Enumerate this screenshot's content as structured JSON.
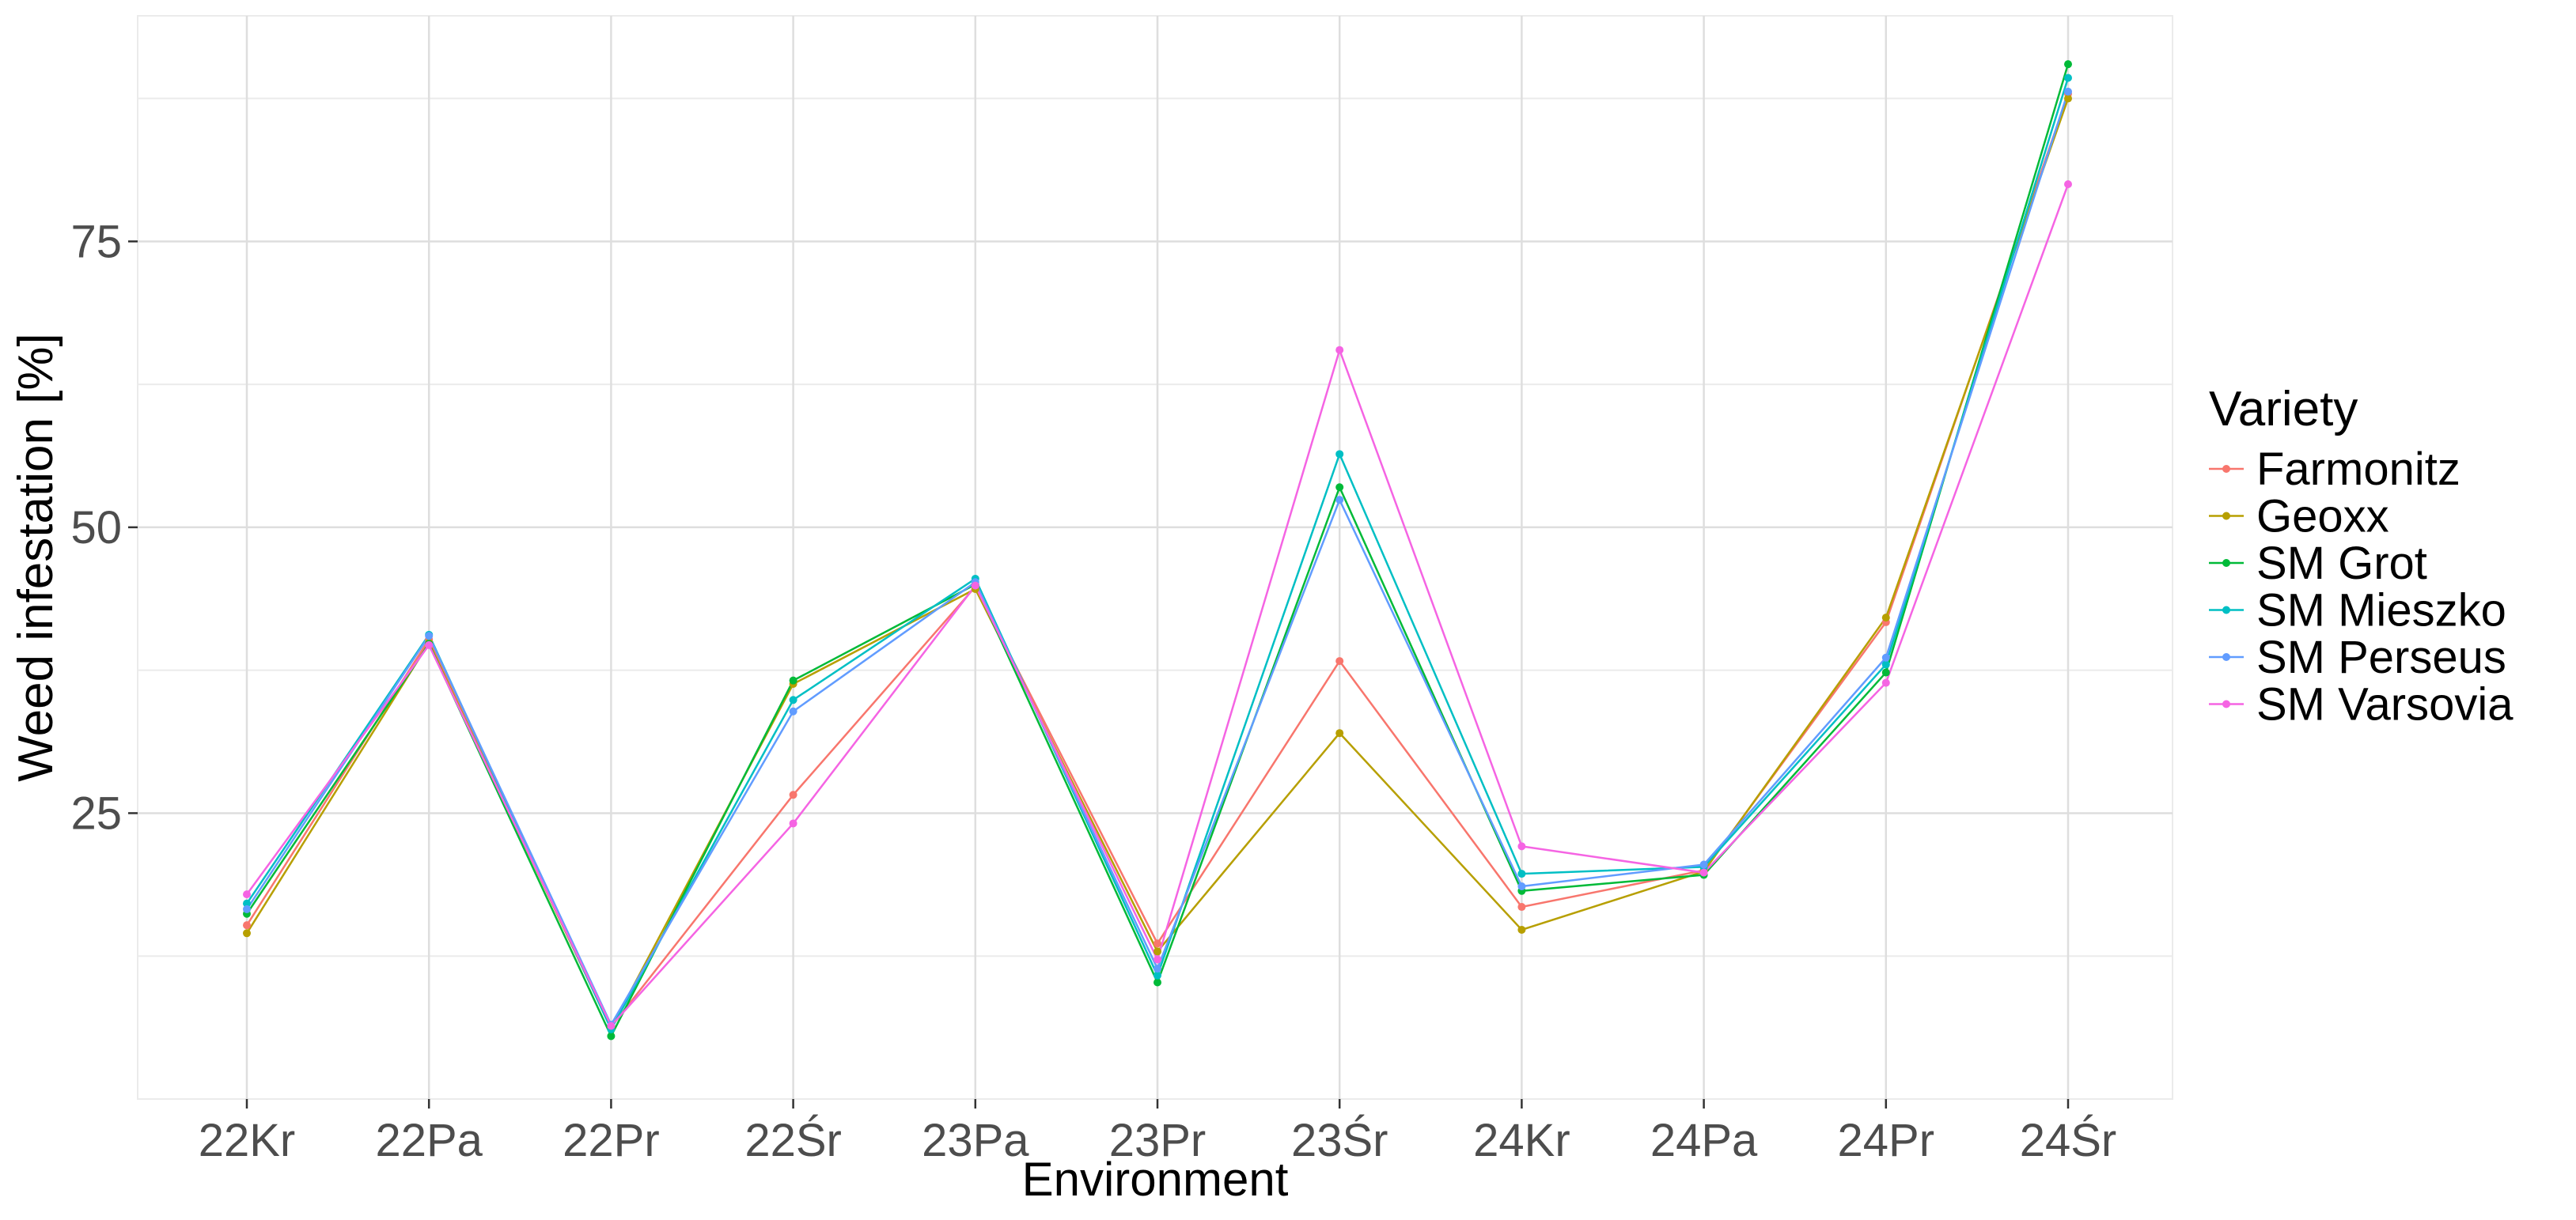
{
  "chart_data": {
    "type": "line",
    "xlabel": "Environment",
    "ylabel": "Weed infestation [%]",
    "categories": [
      "22Kr",
      "22Pa",
      "22Pr",
      "22Śr",
      "23Pa",
      "23Pr",
      "23Śr",
      "24Kr",
      "24Pa",
      "24Pr",
      "24Śr"
    ],
    "ylim": [
      0,
      93
    ],
    "yticks": [
      25,
      50,
      75
    ],
    "grid": true,
    "legend": {
      "title": "Variety",
      "position": "right"
    },
    "series": [
      {
        "name": "Farmonitz",
        "color": "#F8766D",
        "values": [
          15.2,
          40.2,
          6.3,
          26.6,
          44.8,
          13.6,
          38.3,
          16.8,
          20.0,
          41.7,
          87.9
        ]
      },
      {
        "name": "Geoxx",
        "color": "#B79F00",
        "values": [
          14.5,
          39.9,
          6.2,
          36.3,
          44.6,
          12.9,
          32.0,
          14.8,
          19.9,
          42.1,
          87.5
        ]
      },
      {
        "name": "SM Grot",
        "color": "#00BA38",
        "values": [
          16.2,
          39.8,
          5.5,
          36.6,
          45.0,
          10.2,
          53.5,
          18.2,
          19.6,
          37.3,
          90.5
        ]
      },
      {
        "name": "SM Mieszko",
        "color": "#00BFC4",
        "values": [
          17.1,
          40.6,
          6.1,
          34.9,
          45.5,
          10.8,
          56.4,
          19.7,
          20.3,
          38.0,
          89.3
        ]
      },
      {
        "name": "SM Perseus",
        "color": "#619CFF",
        "values": [
          16.6,
          40.5,
          6.5,
          33.9,
          45.2,
          11.4,
          52.4,
          18.6,
          20.5,
          38.6,
          88.1
        ]
      },
      {
        "name": "SM Varsovia",
        "color": "#F564E3",
        "values": [
          17.9,
          39.7,
          6.4,
          24.1,
          44.9,
          12.2,
          65.5,
          22.1,
          19.8,
          36.4,
          80.0
        ]
      }
    ]
  }
}
